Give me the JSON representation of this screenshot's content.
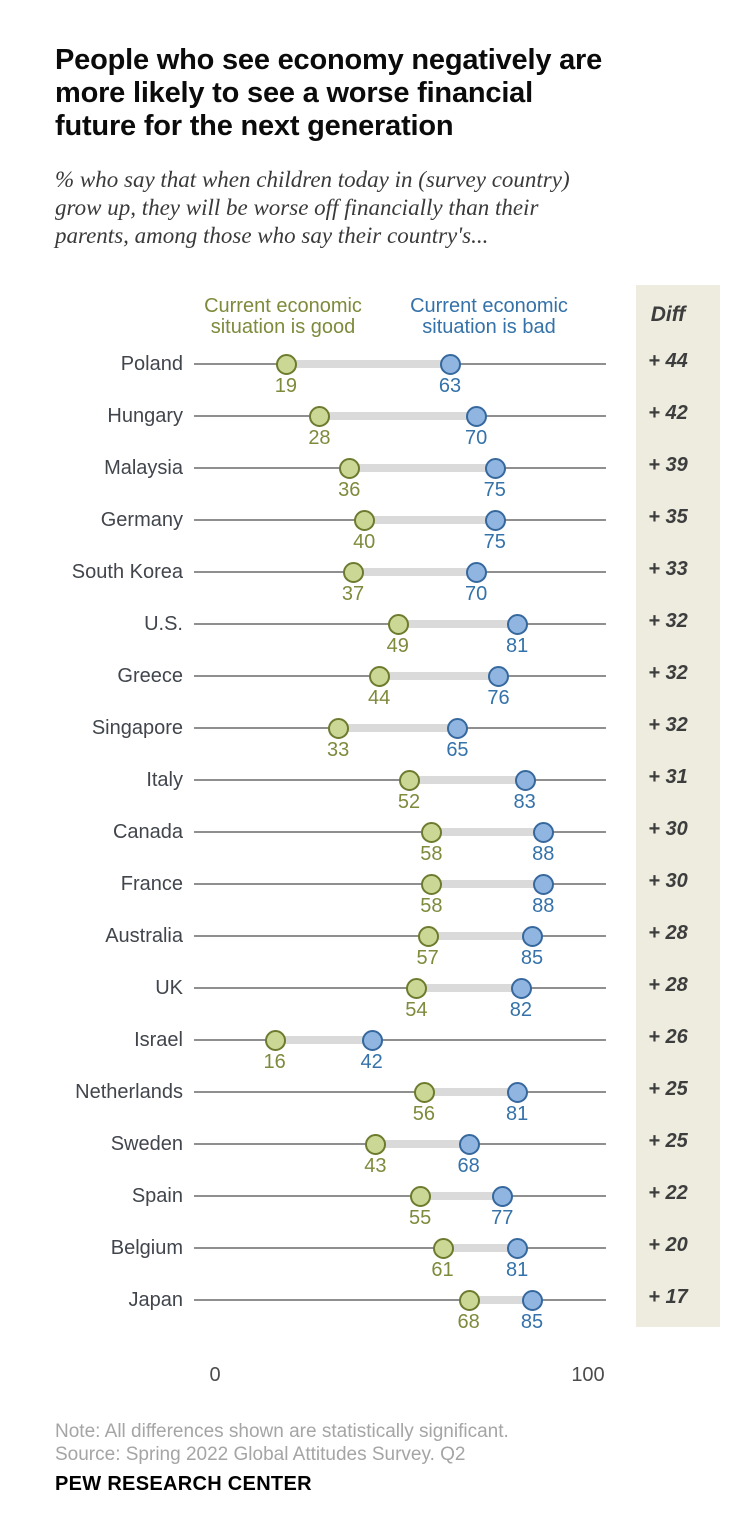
{
  "header": {
    "title_lines": [
      "People who see economy negatively are",
      "more likely to see a worse financial",
      "future for the next generation"
    ],
    "subtitle_lines": [
      "% who say that when children today in (survey country)",
      "grow up, they will be worse off financially than their",
      "parents, among those who say their country's..."
    ]
  },
  "legend": {
    "good_lines": [
      "Current economic",
      "situation is good"
    ],
    "bad_lines": [
      "Current economic",
      "situation is bad"
    ],
    "diff_header": "Diff"
  },
  "chart_data": {
    "type": "scatter",
    "subtype": "dumbbell-dot-plot",
    "title": "People who see economy negatively are more likely to see a worse financial future for the next generation",
    "subtitle": "% who say that when children today in (survey country) grow up, they will be worse off financially than their parents, among those who say their country's...",
    "legend_position": "top",
    "grid": false,
    "x_axis": {
      "min": 0,
      "max": 100,
      "tick_values": [
        0,
        100
      ],
      "tick_labels": [
        "0",
        "100"
      ]
    },
    "diff_column_header": "Diff",
    "series": [
      {
        "name": "Current economic situation is good",
        "color": "#7f8a3c"
      },
      {
        "name": "Current economic situation is bad",
        "color": "#3472a9"
      }
    ],
    "categories": [
      "Poland",
      "Hungary",
      "Malaysia",
      "Germany",
      "South Korea",
      "U.S.",
      "Greece",
      "Singapore",
      "Italy",
      "Canada",
      "France",
      "Australia",
      "UK",
      "Israel",
      "Netherlands",
      "Sweden",
      "Spain",
      "Belgium",
      "Japan"
    ],
    "rows": [
      {
        "country": "Poland",
        "good": 19,
        "bad": 63,
        "diff": 44,
        "diff_label": "+ 44"
      },
      {
        "country": "Hungary",
        "good": 28,
        "bad": 70,
        "diff": 42,
        "diff_label": "+ 42"
      },
      {
        "country": "Malaysia",
        "good": 36,
        "bad": 75,
        "diff": 39,
        "diff_label": "+ 39"
      },
      {
        "country": "Germany",
        "good": 40,
        "bad": 75,
        "diff": 35,
        "diff_label": "+ 35"
      },
      {
        "country": "South Korea",
        "good": 37,
        "bad": 70,
        "diff": 33,
        "diff_label": "+ 33"
      },
      {
        "country": "U.S.",
        "good": 49,
        "bad": 81,
        "diff": 32,
        "diff_label": "+ 32"
      },
      {
        "country": "Greece",
        "good": 44,
        "bad": 76,
        "diff": 32,
        "diff_label": "+ 32"
      },
      {
        "country": "Singapore",
        "good": 33,
        "bad": 65,
        "diff": 32,
        "diff_label": "+ 32"
      },
      {
        "country": "Italy",
        "good": 52,
        "bad": 83,
        "diff": 31,
        "diff_label": "+ 31"
      },
      {
        "country": "Canada",
        "good": 58,
        "bad": 88,
        "diff": 30,
        "diff_label": "+ 30"
      },
      {
        "country": "France",
        "good": 58,
        "bad": 88,
        "diff": 30,
        "diff_label": "+ 30"
      },
      {
        "country": "Australia",
        "good": 57,
        "bad": 85,
        "diff": 28,
        "diff_label": "+ 28"
      },
      {
        "country": "UK",
        "good": 54,
        "bad": 82,
        "diff": 28,
        "diff_label": "+ 28"
      },
      {
        "country": "Israel",
        "good": 16,
        "bad": 42,
        "diff": 26,
        "diff_label": "+ 26"
      },
      {
        "country": "Netherlands",
        "good": 56,
        "bad": 81,
        "diff": 25,
        "diff_label": "+ 25"
      },
      {
        "country": "Sweden",
        "good": 43,
        "bad": 68,
        "diff": 25,
        "diff_label": "+ 25"
      },
      {
        "country": "Spain",
        "good": 55,
        "bad": 77,
        "diff": 22,
        "diff_label": "+ 22"
      },
      {
        "country": "Belgium",
        "good": 61,
        "bad": 81,
        "diff": 20,
        "diff_label": "+ 20"
      },
      {
        "country": "Japan",
        "good": 68,
        "bad": 85,
        "diff": 17,
        "diff_label": "+ 17"
      }
    ]
  },
  "axis": {
    "ticks": [
      {
        "label": "0"
      },
      {
        "label": "100"
      }
    ]
  },
  "footer": {
    "note": "Note: All differences shown are statistically significant.",
    "source": "Source: Spring 2022 Global Attitudes Survey. Q2",
    "brand": "PEW RESEARCH CENTER"
  },
  "colors": {
    "good_text": "#7f8a3c",
    "good_fill": "#cbd794",
    "good_border": "#6c7b2e",
    "bad_text": "#3472a9",
    "bad_fill": "#8fb5e0",
    "bad_border": "#36689e",
    "diff_strip_bg": "#edecdf",
    "row_line": "#8f8f8f",
    "connector": "#dadada"
  }
}
